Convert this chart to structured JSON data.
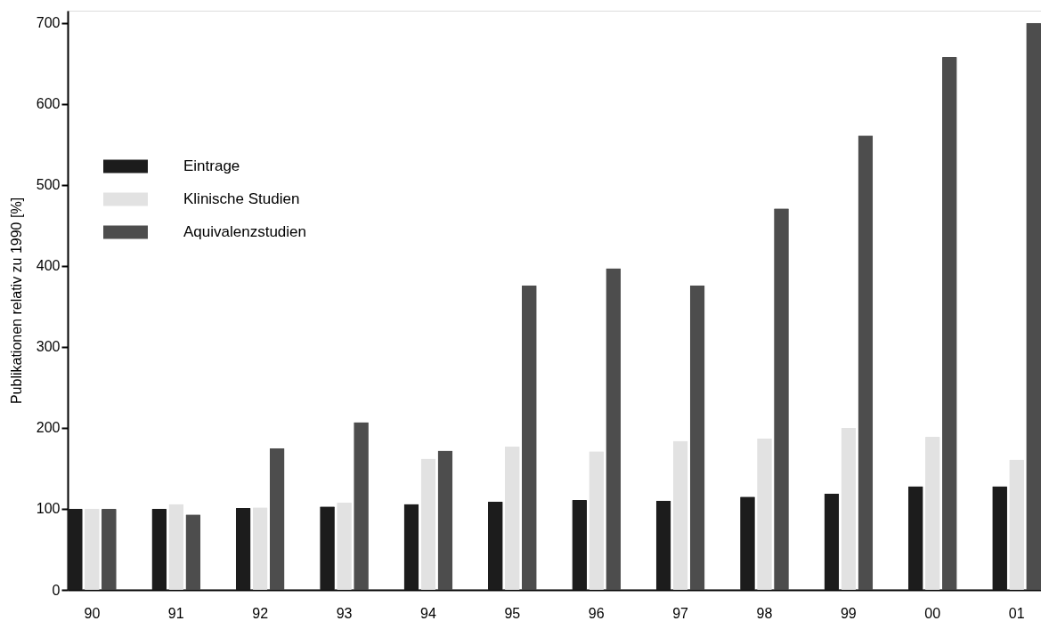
{
  "chart_data": {
    "type": "bar",
    "ylabel": "Publikationen relativ zu 1990 [%]",
    "categories": [
      "90",
      "91",
      "92",
      "93",
      "94",
      "95",
      "96",
      "97",
      "98",
      "99",
      "00",
      "01"
    ],
    "series": [
      {
        "name": "Eintrage",
        "color": "#1c1c1c",
        "values": [
          100,
          100,
          101,
          103,
          106,
          109,
          111,
          110,
          115,
          119,
          128,
          128
        ]
      },
      {
        "name": "Klinische Studien",
        "color": "#e2e2e2",
        "values": [
          100,
          106,
          102,
          108,
          162,
          177,
          171,
          184,
          187,
          200,
          189,
          161
        ]
      },
      {
        "name": "Aquivalenzstudien",
        "color": "#4d4d4d",
        "values": [
          100,
          93,
          175,
          207,
          172,
          376,
          397,
          376,
          471,
          561,
          658,
          700
        ]
      }
    ],
    "ylim": [
      0,
      715
    ],
    "yticks": [
      0,
      100,
      200,
      300,
      400,
      500,
      600,
      700
    ],
    "grid": false,
    "legend": "top left"
  }
}
